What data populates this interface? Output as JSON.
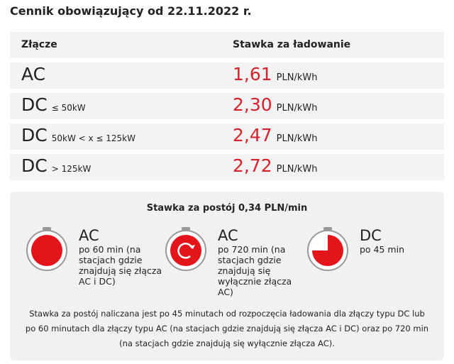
{
  "title": "Cennik obowiązujący od 22.11.2022 r.",
  "table": {
    "header": [
      "Złącze",
      "Stawka za ładowanie"
    ],
    "rows": [
      {
        "connector": "AC",
        "price": "1,61",
        "unit": "PLN/kWh"
      },
      {
        "connector": "DC",
        "qualifier": "≤ 50kW",
        "price": "2,30",
        "unit": "PLN/kWh"
      },
      {
        "connector": "DC",
        "qualifier": "50kW < x ≤ 125kW",
        "price": "2,47",
        "unit": "PLN/kWh"
      },
      {
        "connector": "DC",
        "qualifier": "> 125kW",
        "price": "2,72",
        "unit": "PLN/kWh"
      }
    ]
  },
  "parking": {
    "heading": "Stawka za postój 0,34 PLN/min",
    "timers": [
      {
        "type": "AC",
        "text": "po 60 min (na stacjach gdzie znajdują się złącza AC i DC)"
      },
      {
        "type": "AC",
        "text": "po 720 min (na stacjach gdzie znajdują się wyłącznie złącza AC)"
      },
      {
        "type": "DC",
        "text": "po 45 min"
      }
    ],
    "note": "Stawka za postój naliczana jest po 45 minutach od rozpoczęcia ładowania dla złączy typu DC lub po 60 minutach dla złączy typu AC (na stacjach gdzie znajdują się złącza AC i DC) oraz po 720 min (na stacjach gdzie znajdują się wyłącznie złącza AC)."
  }
}
